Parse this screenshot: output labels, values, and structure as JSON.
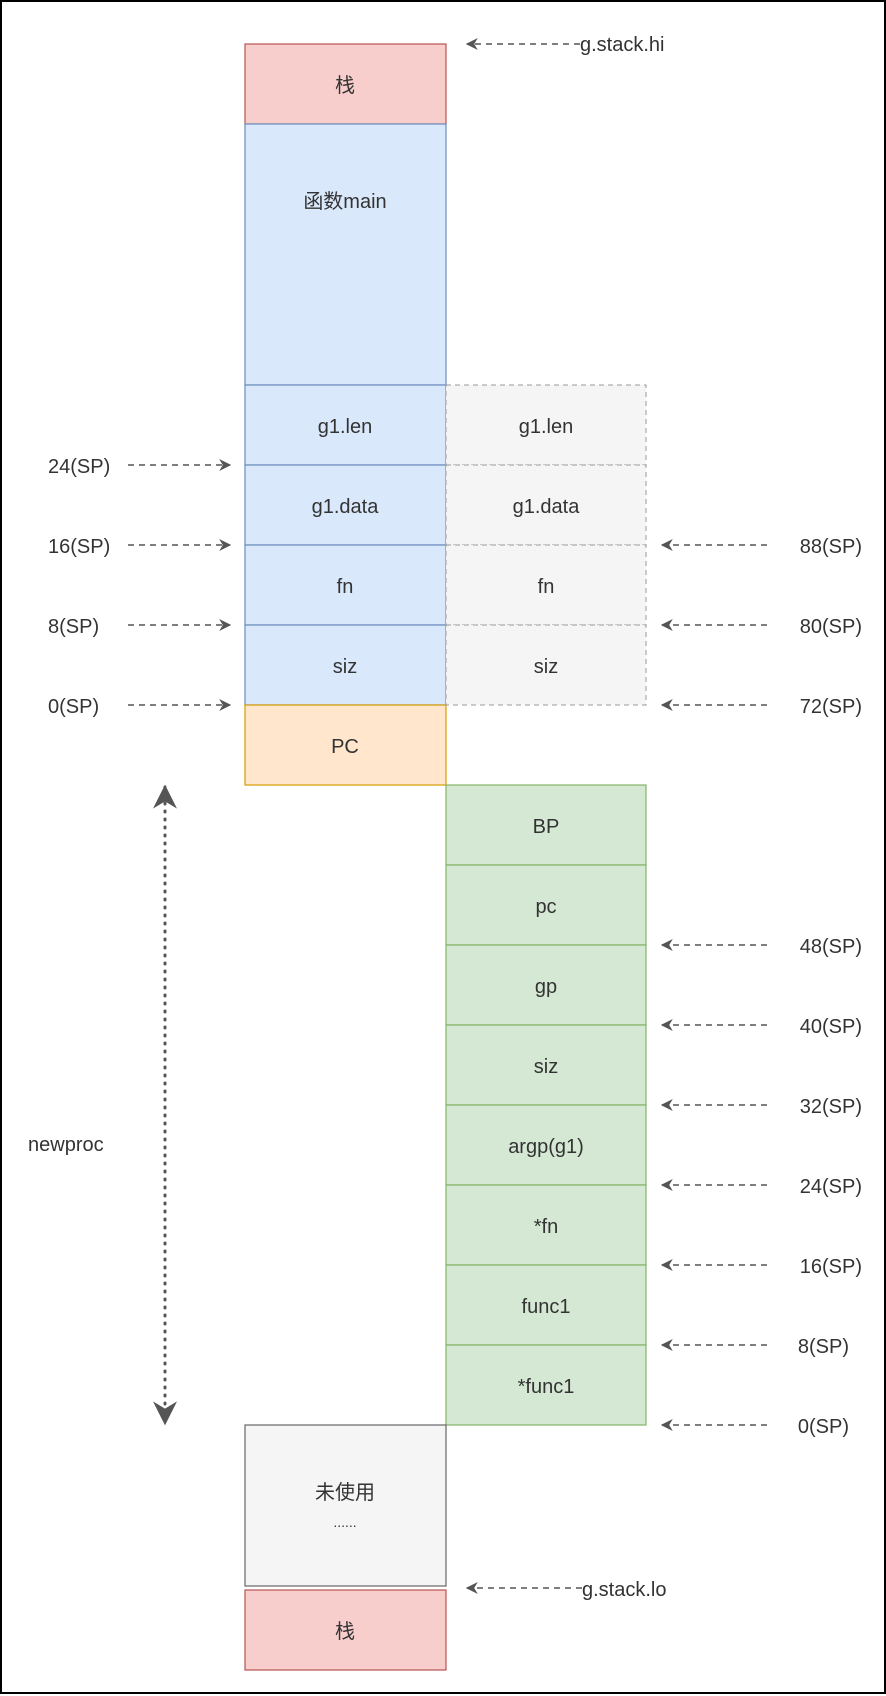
{
  "colors": {
    "stack_fill": "#f8cecc",
    "stack_stroke": "#b85450",
    "main_fill": "#dae8fc",
    "main_stroke": "#6c8ebf",
    "pc_fill": "#ffe6cc",
    "pc_stroke": "#d79b00",
    "green_fill": "#d5e8d4",
    "green_stroke": "#82b366",
    "ghost_fill": "#f5f5f5",
    "ghost_stroke": "#999999",
    "unused_fill": "#f5f5f5",
    "unused_stroke": "#666666",
    "text": "#333333",
    "arrow": "#555555"
  },
  "left_column": {
    "stack_top": "栈",
    "main": "函数main",
    "cells": [
      "g1.len",
      "g1.data",
      "fn",
      "siz"
    ],
    "pc": "PC",
    "unused": "未使用",
    "unused_dots": "......",
    "stack_bottom": "栈"
  },
  "ghost_column": {
    "cells": [
      "g1.len",
      "g1.data",
      "fn",
      "siz"
    ]
  },
  "green_column": {
    "cells": [
      "BP",
      "pc",
      "gp",
      "siz",
      "argp(g1)",
      "*fn",
      "func1",
      "*func1"
    ]
  },
  "left_offsets": [
    "24(SP)",
    "16(SP)",
    "8(SP)",
    "0(SP)"
  ],
  "right_offsets_upper": [
    "88(SP)",
    "80(SP)",
    "72(SP)"
  ],
  "right_offsets_lower": [
    "48(SP)",
    "40(SP)",
    "32(SP)",
    "24(SP)",
    "16(SP)",
    "8(SP)",
    "0(SP)"
  ],
  "g_stack_hi": "g.stack.hi",
  "g_stack_lo": "g.stack.lo",
  "newproc": "newproc"
}
